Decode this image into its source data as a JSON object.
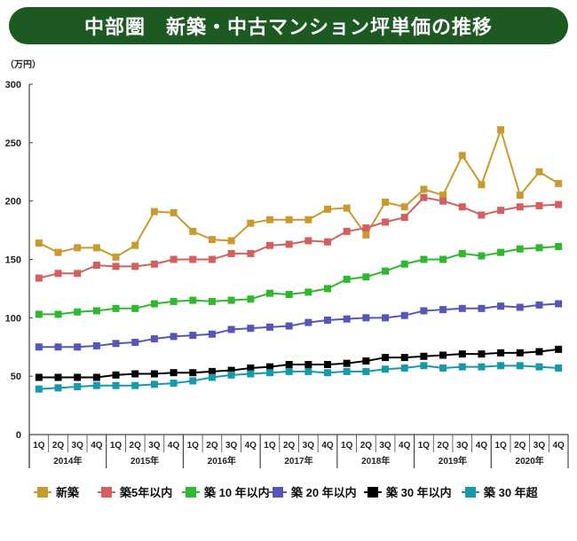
{
  "chart_data": {
    "type": "line",
    "title": "中部圏　新築・中古マンション坪単価の推移",
    "ylabel": "（万円）",
    "ylim": [
      0,
      300
    ],
    "yticks": [
      0,
      50,
      100,
      150,
      200,
      250,
      300
    ],
    "grid": false,
    "legend": "bottom",
    "quarters": [
      "1Q",
      "2Q",
      "3Q",
      "4Q"
    ],
    "years": [
      "2014年",
      "2015年",
      "2016年",
      "2017年",
      "2018年",
      "2019年",
      "2020年"
    ],
    "series": [
      {
        "name": "新築",
        "color": "#c99a2e",
        "values": [
          164,
          156,
          160,
          160,
          152,
          162,
          191,
          190,
          174,
          167,
          166,
          181,
          184,
          184,
          184,
          193,
          194,
          171,
          199,
          195,
          210,
          205,
          239,
          214,
          261,
          205,
          225,
          215
        ]
      },
      {
        "name": "築5年以内",
        "color": "#d35f5f",
        "values": [
          134,
          138,
          138,
          145,
          144,
          144,
          146,
          150,
          150,
          150,
          155,
          155,
          162,
          163,
          166,
          165,
          174,
          177,
          182,
          186,
          203,
          200,
          195,
          188,
          192,
          195,
          196,
          197
        ]
      },
      {
        "name": "築 10 年以内",
        "color": "#2fb82f",
        "values": [
          103,
          103,
          105,
          106,
          108,
          108,
          112,
          114,
          115,
          114,
          115,
          116,
          121,
          120,
          122,
          125,
          133,
          135,
          140,
          146,
          150,
          150,
          155,
          153,
          156,
          159,
          160,
          161
        ]
      },
      {
        "name": "築 20 年以内",
        "color": "#5656b8",
        "values": [
          75,
          75,
          75,
          76,
          78,
          79,
          82,
          84,
          85,
          86,
          90,
          91,
          92,
          93,
          96,
          98,
          99,
          100,
          100,
          102,
          106,
          107,
          108,
          108,
          110,
          109,
          111,
          112
        ]
      },
      {
        "name": "築 30 年以内",
        "color": "#000000",
        "values": [
          49,
          49,
          49,
          49,
          51,
          52,
          52,
          53,
          53,
          54,
          55,
          57,
          58,
          60,
          60,
          60,
          61,
          63,
          66,
          66,
          67,
          68,
          69,
          69,
          70,
          70,
          71,
          73
        ]
      },
      {
        "name": "築 30 年超",
        "color": "#1699a8",
        "values": [
          39,
          40,
          41,
          42,
          42,
          42,
          43,
          44,
          46,
          49,
          51,
          52,
          53,
          54,
          54,
          53,
          54,
          54,
          56,
          57,
          59,
          57,
          58,
          58,
          59,
          59,
          58,
          57
        ]
      }
    ]
  }
}
